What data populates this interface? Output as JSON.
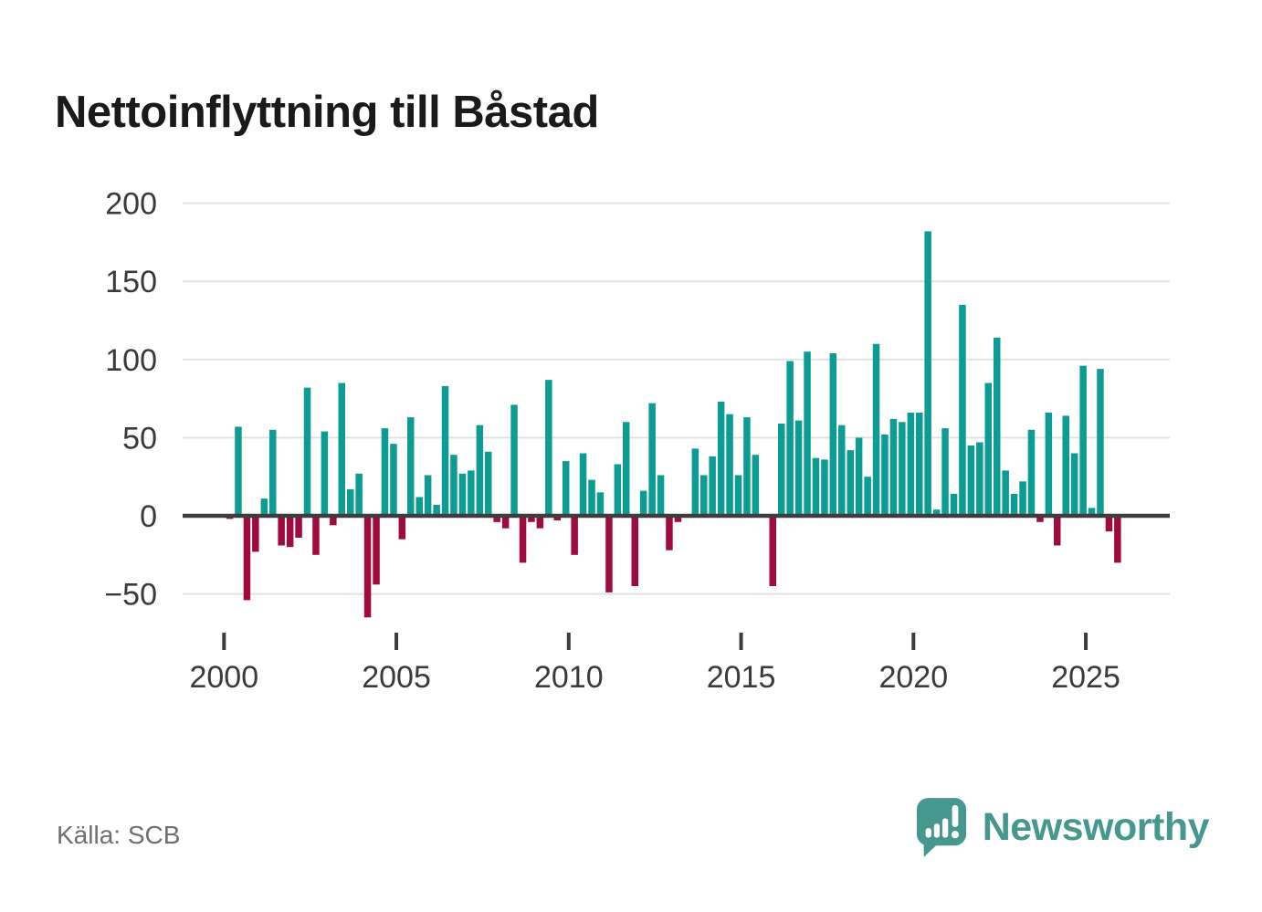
{
  "title": "Nettoinflyttning till Båstad",
  "source": "Källa: SCB",
  "branding": {
    "name": "Newsworthy",
    "icon": "newsworthy-speech-bubble-bar-chart-icon"
  },
  "colors": {
    "positive": "#0D9C94",
    "negative": "#A00B3F",
    "grid": "#E2E2E2",
    "zero_line": "#3D3D3D",
    "axis_text": "#3A3A3A",
    "title_text": "#1A1A1A",
    "source_text": "#6F6F6F",
    "brand": "#46988F"
  },
  "chart_data": {
    "type": "bar",
    "title": "Nettoinflyttning till Båstad",
    "xlabel": "",
    "ylabel": "",
    "frequency": "quarterly",
    "start_year": 2000,
    "values": [
      -2,
      57,
      -54,
      -23,
      11,
      55,
      -19,
      -20,
      -14,
      82,
      -25,
      54,
      -6,
      85,
      17,
      27,
      -65,
      -44,
      56,
      46,
      -15,
      63,
      12,
      26,
      7,
      83,
      39,
      27,
      29,
      58,
      41,
      -4,
      -8,
      71,
      -30,
      -4,
      -8,
      87,
      -3,
      35,
      -25,
      40,
      23,
      15,
      -49,
      33,
      60,
      -45,
      16,
      72,
      26,
      -22,
      -4,
      0,
      43,
      26,
      38,
      73,
      65,
      26,
      63,
      39,
      0,
      -45,
      59,
      99,
      61,
      105,
      37,
      36,
      104,
      58,
      42,
      50,
      25,
      110,
      52,
      62,
      60,
      66,
      66,
      182,
      4,
      56,
      14,
      135,
      45,
      47,
      85,
      114,
      29,
      14,
      22,
      55,
      -4,
      66,
      -19,
      64,
      40,
      96,
      5,
      94,
      -10,
      -30
    ],
    "y_ticks": [
      200,
      150,
      100,
      50,
      0,
      -50
    ],
    "y_tick_labels": [
      "200",
      "150",
      "100",
      "50",
      "0",
      "−50"
    ],
    "x_ticks": [
      2000,
      2005,
      2010,
      2015,
      2020,
      2025
    ],
    "x_tick_labels": [
      "2000",
      "2005",
      "2010",
      "2015",
      "2020",
      "2025"
    ],
    "ylim": [
      -75,
      213
    ],
    "grid": "horizontal",
    "legend": "none",
    "positive_color": "#0D9C94",
    "negative_color": "#A00B3F"
  }
}
